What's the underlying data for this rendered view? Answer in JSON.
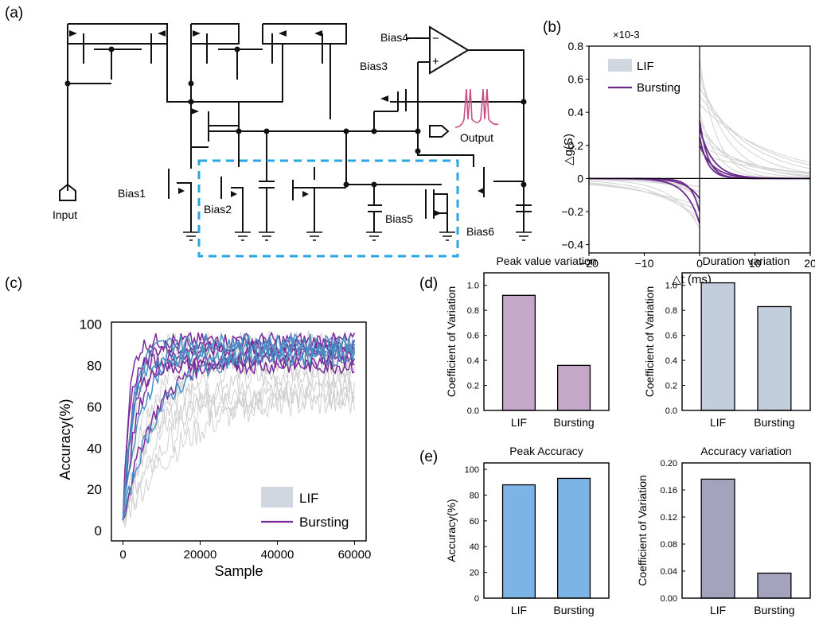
{
  "panels": {
    "a": "(a)",
    "b": "(b)",
    "c": "(c)",
    "d": "(d)",
    "e": "(e)"
  },
  "circuit": {
    "labels": {
      "input": "Input",
      "output": "Output",
      "bias1": "Bias1",
      "bias2": "Bias2",
      "bias3": "Bias3",
      "bias4": "Bias4",
      "bias5": "Bias5",
      "bias6": "Bias6",
      "minus": "−",
      "plus": "+"
    },
    "colors": {
      "wire": "#111111",
      "dashed_box": "#2aa6e0",
      "spike": "#cc4e86"
    }
  },
  "chart_data": [
    {
      "id": "b",
      "type": "line",
      "xlabel": "△t (ms)",
      "ylabel": "△g(S)",
      "y_multiplier": "×10-3",
      "xlim": [
        -20,
        20
      ],
      "ylim": [
        -0.45,
        0.8
      ],
      "xticks": [
        -20,
        -10,
        0,
        10,
        20
      ],
      "yticks": [
        -0.4,
        -0.2,
        0,
        0.2,
        0.4,
        0.6,
        0.8
      ],
      "legend": {
        "position": "top-left",
        "entries": [
          "LIF",
          "Bursting"
        ]
      },
      "series": [
        {
          "name": "LIF",
          "color": "#d5d5d5",
          "description_shape": "many gray STDP curves: positive side decays from up to ~0.7 toward 0 by 20 ms, negative side from -0.3 to 0 by -20 ms",
          "amplitudes_pos": [
            0.72,
            0.65,
            0.6,
            0.55,
            0.5,
            0.45,
            0.4,
            0.35,
            0.3,
            0.25,
            0.2,
            0.15
          ],
          "amplitudes_neg": [
            -0.3,
            -0.27,
            -0.24,
            -0.2,
            -0.17,
            -0.14,
            -0.11,
            -0.08,
            -0.05
          ],
          "tau_ms": [
            3,
            5,
            7,
            9,
            11,
            13
          ]
        },
        {
          "name": "Bursting",
          "color": "#6a2a8a",
          "amplitudes_pos": [
            0.35,
            0.3,
            0.25,
            0.2
          ],
          "amplitudes_neg": [
            -0.27,
            -0.2,
            -0.12
          ],
          "tau_ms": [
            1.5,
            2.5
          ]
        }
      ]
    },
    {
      "id": "c",
      "type": "line",
      "xlabel": "Sample",
      "ylabel": "Accuracy(%)",
      "xlim": [
        -3000,
        63000
      ],
      "ylim": [
        -5,
        101
      ],
      "xticks": [
        0,
        20000,
        40000,
        60000
      ],
      "yticks": [
        0,
        20,
        40,
        60,
        80,
        100
      ],
      "legend": {
        "position": "bottom-right",
        "entries": [
          "LIF",
          "Bursting"
        ]
      },
      "series": [
        {
          "name": "LIF",
          "color": "#d0d0d0",
          "final_values": [
            90,
            85,
            82,
            78,
            74,
            70,
            66,
            62
          ],
          "rise_samples": [
            3000,
            6000,
            9000,
            12000,
            15000,
            18000
          ]
        },
        {
          "name": "Bursting",
          "color": "#7a2a9a",
          "final_values": [
            92,
            90,
            88,
            85,
            82,
            80
          ],
          "rise_samples": [
            1500,
            2500,
            4000,
            8000
          ]
        },
        {
          "color": "#4a8fc4",
          "final_values": [
            91,
            89,
            86,
            84
          ],
          "rise_samples": [
            2500,
            5000,
            9000
          ]
        }
      ]
    },
    {
      "id": "d1",
      "type": "bar",
      "title": "Peak value variation",
      "ylabel": "Coefficient of Variation",
      "categories": [
        "LIF",
        "Bursting"
      ],
      "values": [
        0.92,
        0.36
      ],
      "ylim": [
        0,
        1.1
      ],
      "yticks": [
        0.0,
        0.2,
        0.4,
        0.6,
        0.8,
        1.0
      ],
      "color": "#c5a8c9"
    },
    {
      "id": "d2",
      "type": "bar",
      "title": "Duration variation",
      "ylabel": "Coefficient of Variation",
      "categories": [
        "LIF",
        "Bursting"
      ],
      "values": [
        1.02,
        0.83
      ],
      "ylim": [
        0,
        1.1
      ],
      "yticks": [
        0.0,
        0.2,
        0.4,
        0.6,
        0.8,
        1.0
      ],
      "color": "#c2cedd"
    },
    {
      "id": "e1",
      "type": "bar",
      "title": "Peak Accuracy",
      "ylabel": "Accuracy(%)",
      "categories": [
        "LIF",
        "Bursting"
      ],
      "values": [
        88,
        93
      ],
      "ylim": [
        0,
        105
      ],
      "yticks": [
        0,
        20,
        40,
        60,
        80,
        100
      ],
      "color": "#7cb4e6"
    },
    {
      "id": "e2",
      "type": "bar",
      "title": "Accuracy variation",
      "ylabel": "Coefficient of Variation",
      "categories": [
        "LIF",
        "Bursting"
      ],
      "values": [
        0.176,
        0.037
      ],
      "ylim": [
        0,
        0.2
      ],
      "yticks": [
        0.0,
        0.04,
        0.08,
        0.12,
        0.16,
        0.2
      ],
      "color": "#a3a3bd"
    }
  ]
}
